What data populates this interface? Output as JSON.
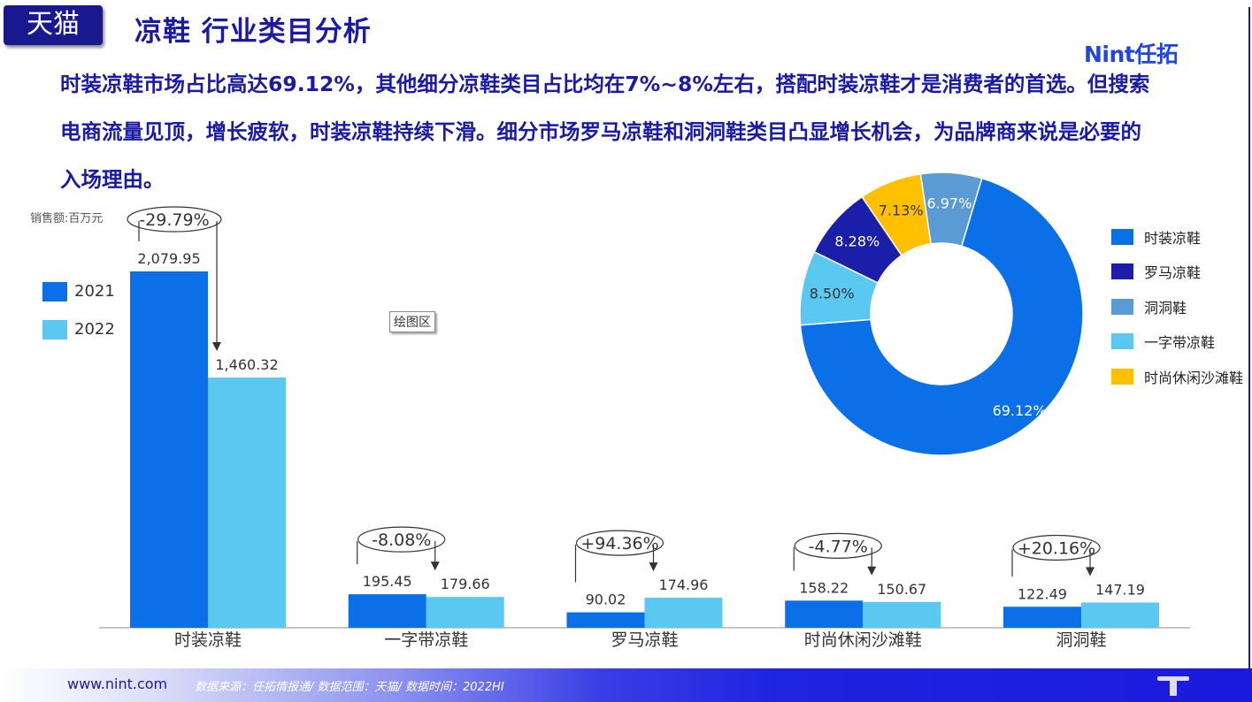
{
  "header": {
    "badge": "天猫",
    "title": "凉鞋 行业类目分析",
    "logo": "Nint任拓"
  },
  "description": "时装凉鞋市场占比高达69.12%，其他细分凉鞋类目占比均在7%~8%左右，搭配时装凉鞋才是消费者的首选。但搜索电商流量见顶，增长疲软，时装凉鞋持续下滑。细分市场罗马凉鞋和洞洞鞋类目凸显增长机会，为品牌商来说是必要的入场理由。",
  "plot_area_tooltip": "绘图区",
  "colors": {
    "dark_blue": "#18188f",
    "blue_2021": "#0b6fe8",
    "light_2022": "#5bc8f2",
    "roman": "#1a1ea8",
    "clog": "#5b9bd5",
    "yellow": "#ffc000"
  },
  "chart_data": [
    {
      "type": "bar",
      "title": "",
      "ylabel": "销售额:百万元",
      "xlabel": "",
      "categories": [
        "时装凉鞋",
        "一字带凉鞋",
        "罗马凉鞋",
        "时尚休闲沙滩鞋",
        "洞洞鞋"
      ],
      "series": [
        {
          "name": "2021",
          "values": [
            2079.95,
            195.45,
            90.02,
            158.22,
            122.49
          ],
          "labels": [
            "2,079.95",
            "195.45",
            "90.02",
            "158.22",
            "122.49"
          ]
        },
        {
          "name": "2022",
          "values": [
            1460.32,
            179.66,
            174.96,
            150.67,
            147.19
          ],
          "labels": [
            "1,460.32",
            "179.66",
            "174.96",
            "150.67",
            "147.19"
          ]
        }
      ],
      "growth_labels": [
        "-29.79%",
        "-8.08%",
        "+94.36%",
        "-4.77%",
        "+20.16%"
      ],
      "ylim": [
        0,
        2300
      ],
      "grid": false,
      "legend_position": "left"
    },
    {
      "type": "pie",
      "variant": "donut",
      "title": "",
      "slices": [
        {
          "name": "时装凉鞋",
          "value": 69.12,
          "label": "69.12%"
        },
        {
          "name": "一字带凉鞋",
          "value": 8.5,
          "label": "8.50%"
        },
        {
          "name": "罗马凉鞋",
          "value": 8.28,
          "label": "8.28%"
        },
        {
          "name": "时尚休闲沙滩鞋",
          "value": 7.13,
          "label": "7.13%"
        },
        {
          "name": "洞洞鞋",
          "value": 6.97,
          "label": "6.97%"
        }
      ],
      "legend": [
        "时装凉鞋",
        "罗马凉鞋",
        "洞洞鞋",
        "一字带凉鞋",
        "时尚休闲沙滩鞋"
      ],
      "legend_position": "right"
    }
  ],
  "footer": {
    "website": "www.nint.com",
    "source": "数据来源：任拓情报通/ 数据范围：天猫/ 数据时间：2022HI"
  }
}
